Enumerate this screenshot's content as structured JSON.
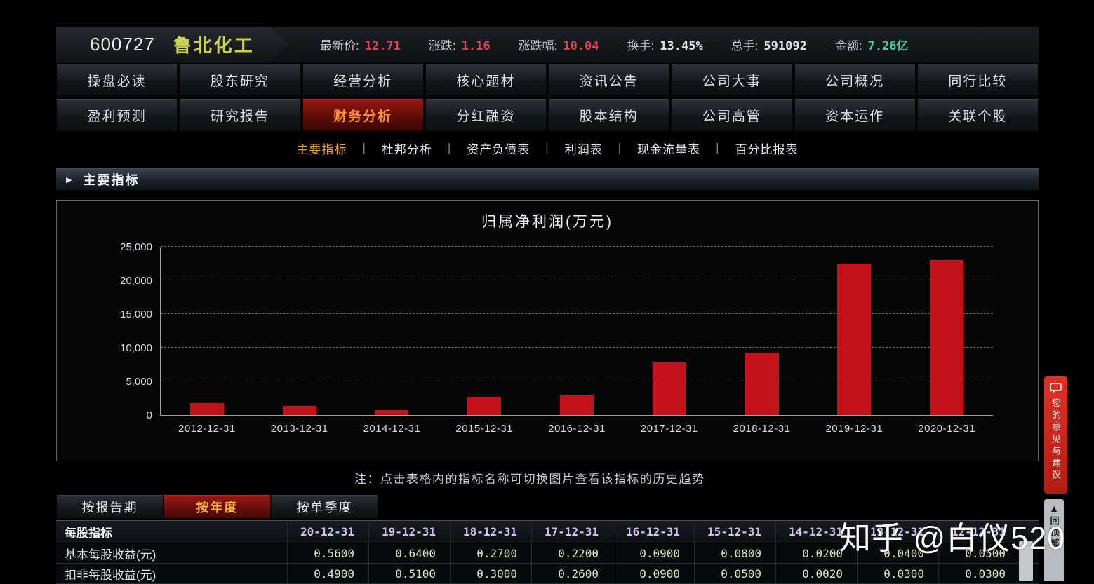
{
  "header": {
    "code": "600727",
    "name": "鲁北化工",
    "quotes": [
      {
        "label": "最新价:",
        "value": "12.71",
        "color": "red"
      },
      {
        "label": "涨跌:",
        "value": "1.16",
        "color": "red"
      },
      {
        "label": "涨跌幅:",
        "value": "10.04",
        "color": "red"
      },
      {
        "label": "换手:",
        "value": "13.45%",
        "color": "white"
      },
      {
        "label": "总手:",
        "value": "591092",
        "color": "white"
      },
      {
        "label": "金额:",
        "value": "7.26亿",
        "color": "green"
      }
    ]
  },
  "menu": {
    "rows": [
      [
        {
          "label": "操盘必读",
          "active": false
        },
        {
          "label": "股东研究",
          "active": false
        },
        {
          "label": "经营分析",
          "active": false
        },
        {
          "label": "核心题材",
          "active": false
        },
        {
          "label": "资讯公告",
          "active": false
        },
        {
          "label": "公司大事",
          "active": false
        },
        {
          "label": "公司概况",
          "active": false
        },
        {
          "label": "同行比较",
          "active": false
        }
      ],
      [
        {
          "label": "盈利预测",
          "active": false
        },
        {
          "label": "研究报告",
          "active": false
        },
        {
          "label": "财务分析",
          "active": true
        },
        {
          "label": "分红融资",
          "active": false
        },
        {
          "label": "股本结构",
          "active": false
        },
        {
          "label": "公司高管",
          "active": false
        },
        {
          "label": "资本运作",
          "active": false
        },
        {
          "label": "关联个股",
          "active": false
        }
      ]
    ]
  },
  "submenu": {
    "items": [
      {
        "label": "主要指标",
        "active": true
      },
      {
        "label": "杜邦分析",
        "active": false
      },
      {
        "label": "资产负债表",
        "active": false
      },
      {
        "label": "利润表",
        "active": false
      },
      {
        "label": "现金流量表",
        "active": false
      },
      {
        "label": "百分比报表",
        "active": false
      }
    ],
    "separator": "|"
  },
  "section": {
    "arrow": "▶",
    "title": "主要指标"
  },
  "chart_data": {
    "type": "bar",
    "title": "归属净利润(万元)",
    "categories": [
      "2012-12-31",
      "2013-12-31",
      "2014-12-31",
      "2015-12-31",
      "2016-12-31",
      "2017-12-31",
      "2018-12-31",
      "2019-12-31",
      "2020-12-31"
    ],
    "values": [
      1800,
      1400,
      700,
      2700,
      2900,
      7800,
      9300,
      22500,
      23000
    ],
    "xlabel": "",
    "ylabel": "",
    "ylim": [
      0,
      25000
    ],
    "yticks": [
      0,
      5000,
      10000,
      15000,
      20000,
      25000
    ],
    "grid": "dashed horizontal",
    "legend": "none"
  },
  "note": "注：点击表格内的指标名称可切换图片查看该指标的历史趋势",
  "period_tabs": [
    {
      "label": "按报告期",
      "active": false
    },
    {
      "label": "按年度",
      "active": true
    },
    {
      "label": "按单季度",
      "active": false
    }
  ],
  "table": {
    "header_label": "每股指标",
    "columns": [
      "20-12-31",
      "19-12-31",
      "18-12-31",
      "17-12-31",
      "16-12-31",
      "15-12-31",
      "14-12-31",
      "13-12-31",
      "12-12-31"
    ],
    "rows": [
      {
        "label": "基本每股收益(元)",
        "values": [
          "0.5600",
          "0.6400",
          "0.2700",
          "0.2200",
          "0.0900",
          "0.0800",
          "0.0200",
          "0.0400",
          "0.0500"
        ]
      },
      {
        "label": "扣非每股收益(元)",
        "values": [
          "0.4900",
          "0.5100",
          "0.3000",
          "0.2600",
          "0.0900",
          "0.0500",
          "0.0020",
          "0.0300",
          "0.0300"
        ]
      }
    ]
  },
  "sidebar": {
    "feedback_label": "您的意见与建议",
    "back_to_top_label": "回顶部",
    "back_to_top_arrow": "▲"
  },
  "watermark": "知乎 @白仪520",
  "colors": {
    "bar_red": "#c4121a",
    "up_red": "#e0404e",
    "amount_green": "#3fcf9a",
    "active_orange": "#ff9232",
    "tab_yellow": "#ffb83d",
    "date_lavender": "#cdc3ea",
    "value_pale_green": "#dbe7bd"
  }
}
